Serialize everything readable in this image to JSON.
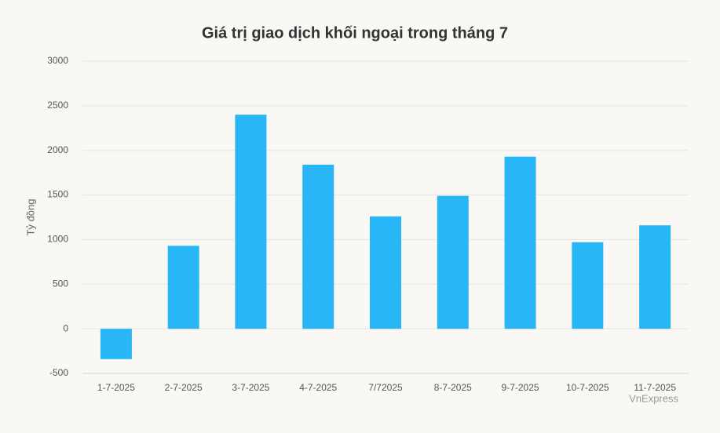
{
  "chart_data": {
    "type": "bar",
    "title": "Giá trị giao dịch khối ngoại trong tháng 7",
    "y_label": "Tỷ đồng",
    "credit": "VnExpress",
    "categories": [
      "1-7-2025",
      "2-7-2025",
      "3-7-2025",
      "4-7-2025",
      "7/72025",
      "8-7-2025",
      "9-7-2025",
      "10-7-2025",
      "11-7-2025"
    ],
    "values": [
      -340,
      930,
      2400,
      1840,
      1260,
      1490,
      1930,
      970,
      1160
    ],
    "color": "#29b6f6",
    "ylim": [
      -500,
      3000
    ],
    "yticks": [
      -500,
      0,
      500,
      1000,
      1500,
      2000,
      2500,
      3000
    ],
    "grid": true
  }
}
